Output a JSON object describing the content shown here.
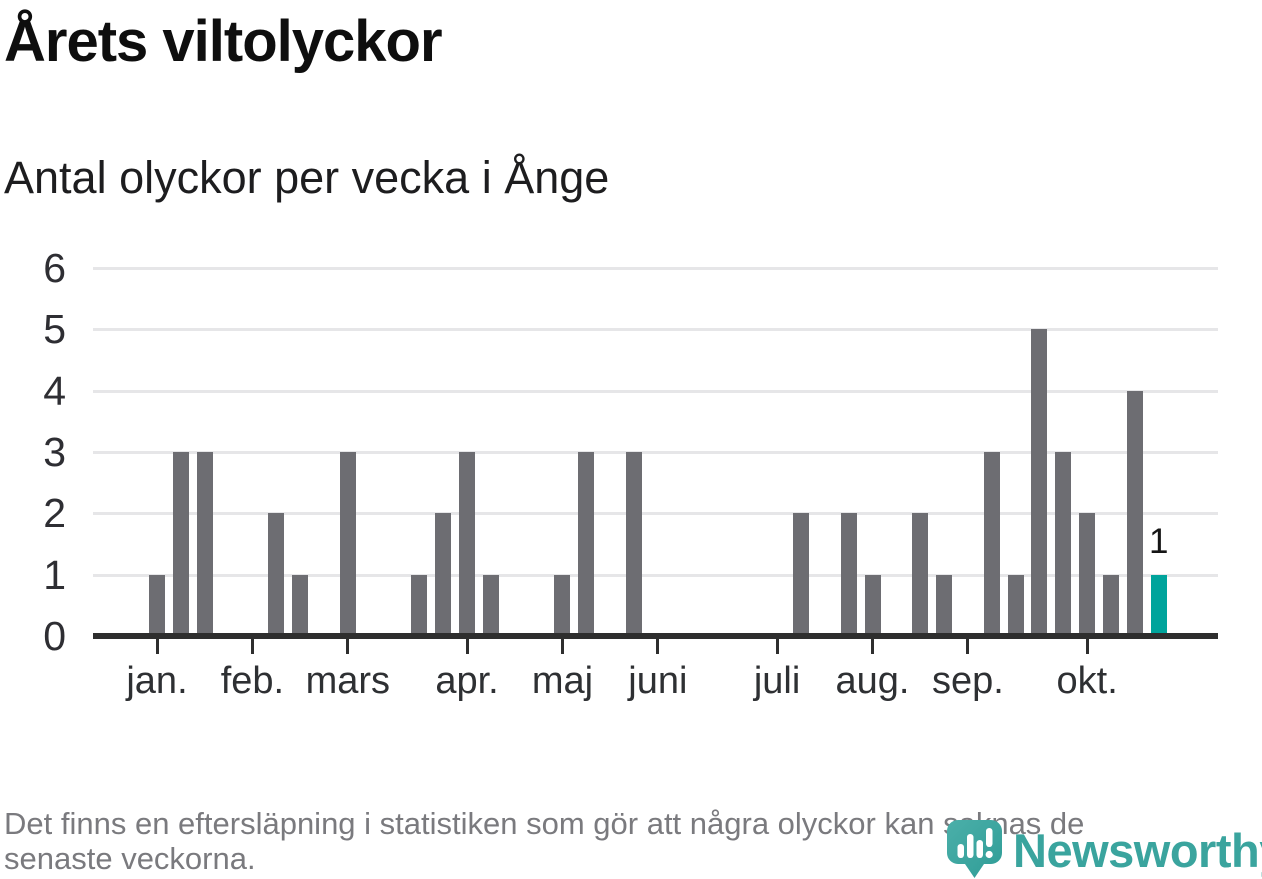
{
  "title": "Årets viltolyckor",
  "subtitle": "Antal olyckor per vecka i Ånge",
  "footer": {
    "lines": [
      "Det finns en eftersläpning i statistiken som gör att några olyckor kan saknas de",
      "senaste veckorna."
    ]
  },
  "logo": {
    "name": "Newsworthy"
  },
  "chart_data": {
    "type": "bar",
    "title": "Årets viltolyckor",
    "subtitle": "Antal olyckor per vecka i Ånge",
    "xlabel": "",
    "ylabel": "",
    "x_unit": "vecka (ISO week of year)",
    "ylim": [
      0,
      6
    ],
    "y_ticks": [
      0,
      1,
      2,
      3,
      4,
      5,
      6
    ],
    "grid": true,
    "legend": "none",
    "month_ticks": [
      {
        "label": "jan.",
        "week": 2
      },
      {
        "label": "feb.",
        "week": 6
      },
      {
        "label": "mars",
        "week": 10
      },
      {
        "label": "apr.",
        "week": 15
      },
      {
        "label": "maj",
        "week": 19
      },
      {
        "label": "juni",
        "week": 23
      },
      {
        "label": "juli",
        "week": 28
      },
      {
        "label": "aug.",
        "week": 32
      },
      {
        "label": "sep.",
        "week": 36
      },
      {
        "label": "okt.",
        "week": 41
      }
    ],
    "bars": [
      {
        "week": 2,
        "value": 1
      },
      {
        "week": 3,
        "value": 3
      },
      {
        "week": 4,
        "value": 3
      },
      {
        "week": 7,
        "value": 2
      },
      {
        "week": 8,
        "value": 1
      },
      {
        "week": 10,
        "value": 3
      },
      {
        "week": 13,
        "value": 1
      },
      {
        "week": 14,
        "value": 2
      },
      {
        "week": 15,
        "value": 3
      },
      {
        "week": 16,
        "value": 1
      },
      {
        "week": 19,
        "value": 1
      },
      {
        "week": 20,
        "value": 3
      },
      {
        "week": 22,
        "value": 3
      },
      {
        "week": 29,
        "value": 2
      },
      {
        "week": 31,
        "value": 2
      },
      {
        "week": 32,
        "value": 1
      },
      {
        "week": 34,
        "value": 2
      },
      {
        "week": 35,
        "value": 1
      },
      {
        "week": 37,
        "value": 3
      },
      {
        "week": 38,
        "value": 1
      },
      {
        "week": 39,
        "value": 5
      },
      {
        "week": 40,
        "value": 3
      },
      {
        "week": 41,
        "value": 2
      },
      {
        "week": 42,
        "value": 1
      },
      {
        "week": 43,
        "value": 4
      },
      {
        "week": 44,
        "value": 1,
        "highlight": true,
        "label": "1"
      }
    ],
    "colors": {
      "bar": "#6d6d72",
      "highlight": "#00a49c",
      "axis": "#2e2e2e",
      "grid": "#e6e6e8",
      "logo": "#3aa49e"
    }
  }
}
